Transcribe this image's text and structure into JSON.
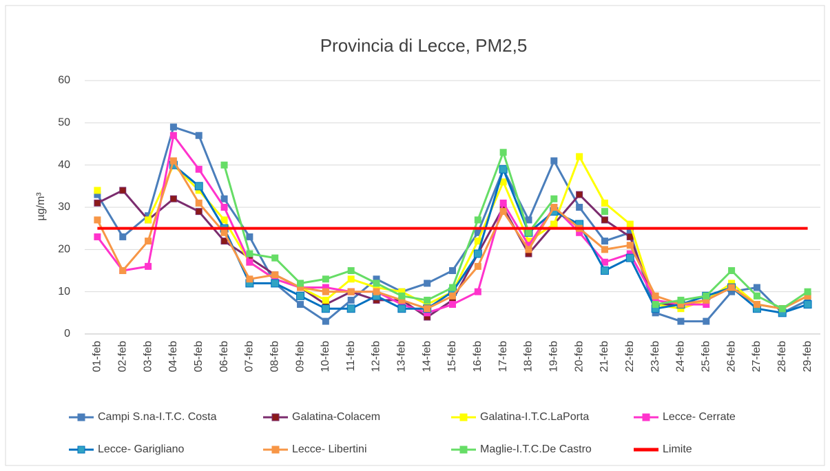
{
  "chart_data": {
    "type": "line",
    "title": "Provincia di Lecce, PM2,5",
    "y_label": "µg/m³",
    "categories": [
      "01-feb",
      "02-feb",
      "03-feb",
      "04-feb",
      "05-feb",
      "06-feb",
      "07-feb",
      "08-feb",
      "09-feb",
      "10-feb",
      "11-feb",
      "12-feb",
      "13-feb",
      "14-feb",
      "15-feb",
      "16-feb",
      "17-feb",
      "18-feb",
      "19-feb",
      "20-feb",
      "21-feb",
      "22-feb",
      "23-feb",
      "24-feb",
      "25-feb",
      "26-feb",
      "27-feb",
      "28-feb",
      "29-feb"
    ],
    "ylim": [
      0,
      60
    ],
    "yticks": [
      0,
      10,
      20,
      30,
      40,
      50,
      60
    ],
    "grid": true,
    "series": [
      {
        "name": "Campi S.na-I.T.C. Costa",
        "color": "#4a7ebb",
        "marker": true,
        "values": [
          33,
          23,
          28,
          49,
          47,
          32,
          23,
          12,
          7,
          3,
          8,
          13,
          10,
          12,
          15,
          24,
          39,
          27,
          41,
          30,
          22,
          24,
          5,
          3,
          3,
          10,
          11,
          5,
          8
        ]
      },
      {
        "name": "Galatina-Colacem",
        "color": "#7b2c6e",
        "marker_color": "#8b1a1a",
        "marker": true,
        "values": [
          31,
          34,
          27,
          32,
          29,
          22,
          18,
          14,
          11,
          7,
          10,
          8,
          8,
          4,
          8,
          19,
          30,
          19,
          26,
          33,
          27,
          23,
          7,
          7,
          8,
          11,
          7,
          6,
          9
        ]
      },
      {
        "name": "Galatina-I.T.C.LaPorta",
        "color": "#ffff00",
        "marker": true,
        "values": [
          34,
          null,
          27,
          40,
          34,
          27,
          17,
          13,
          11,
          8,
          13,
          11,
          10,
          7,
          10,
          22,
          36,
          22,
          26,
          42,
          31,
          26,
          7,
          6,
          8,
          12,
          7,
          6,
          9
        ]
      },
      {
        "name": "Lecce- Cerrate",
        "color": "#ff33cc",
        "marker": true,
        "values": [
          23,
          15,
          16,
          47,
          39,
          30,
          17,
          13,
          11,
          11,
          10,
          10,
          7,
          5,
          7,
          10,
          31,
          21,
          30,
          24,
          17,
          19,
          8,
          7,
          7,
          null,
          null,
          null,
          null
        ]
      },
      {
        "name": "Lecce- Garigliano",
        "color": "#0070c0",
        "marker_color": "#31a3c4",
        "marker": true,
        "values": [
          null,
          null,
          null,
          40,
          35,
          25,
          12,
          12,
          9,
          6,
          6,
          9,
          6,
          6,
          10,
          19,
          39,
          24,
          29,
          26,
          15,
          18,
          6,
          7,
          9,
          11,
          6,
          5,
          7
        ]
      },
      {
        "name": "Lecce- Libertini",
        "color": "#f79646",
        "marker": true,
        "values": [
          27,
          15,
          22,
          41,
          31,
          24,
          13,
          14,
          11,
          10,
          10,
          10,
          8,
          6,
          9,
          16,
          29,
          20,
          30,
          25,
          20,
          21,
          9,
          7,
          8,
          11,
          7,
          6,
          9
        ]
      },
      {
        "name": "Maglie-I.T.C.De Castro",
        "color": "#66dd66",
        "marker": true,
        "values": [
          null,
          null,
          null,
          null,
          null,
          40,
          19,
          18,
          12,
          13,
          15,
          12,
          9,
          8,
          11,
          27,
          43,
          24,
          32,
          null,
          29,
          null,
          7,
          8,
          9,
          15,
          9,
          6,
          10
        ]
      },
      {
        "name": "Limite",
        "color": "#ff0000",
        "marker": false,
        "values": [
          25,
          25,
          25,
          25,
          25,
          25,
          25,
          25,
          25,
          25,
          25,
          25,
          25,
          25,
          25,
          25,
          25,
          25,
          25,
          25,
          25,
          25,
          25,
          25,
          25,
          25,
          25,
          25,
          25
        ]
      }
    ]
  }
}
